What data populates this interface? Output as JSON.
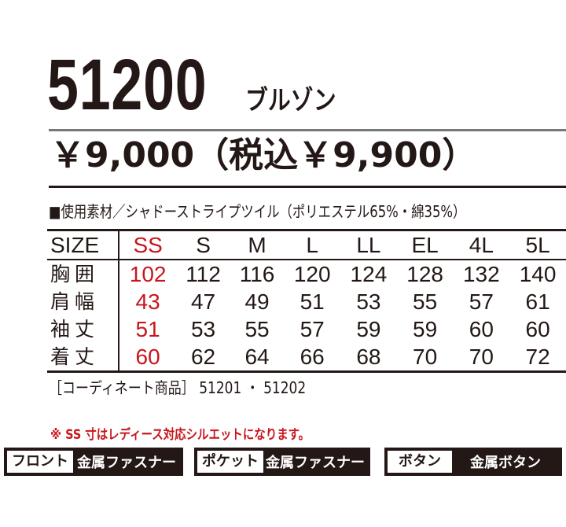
{
  "product": {
    "code": "51200",
    "kind": "ブルゾン"
  },
  "price": "￥9,000（税込￥9,900）",
  "material": "■使用素材／シャドーストライプツイル（ポリエステル65%・綿35%）",
  "size_table": {
    "header_label": "SIZE",
    "sizes": [
      "SS",
      "S",
      "M",
      "L",
      "LL",
      "EL",
      "4L",
      "5L"
    ],
    "rows": [
      {
        "label": "胸囲",
        "values": [
          "102",
          "112",
          "116",
          "120",
          "124",
          "128",
          "132",
          "140"
        ]
      },
      {
        "label": "肩幅",
        "values": [
          "43",
          "47",
          "49",
          "51",
          "53",
          "55",
          "57",
          "61"
        ]
      },
      {
        "label": "袖丈",
        "values": [
          "51",
          "53",
          "55",
          "57",
          "59",
          "59",
          "60",
          "60"
        ]
      },
      {
        "label": "着丈",
        "values": [
          "60",
          "62",
          "64",
          "66",
          "68",
          "70",
          "70",
          "72"
        ]
      }
    ],
    "highlight_color": "#c8161d"
  },
  "coordinate": "［コーディネート商品］ 51201 ・ 51202",
  "note": "※ SS 寸はレディース対応シルエットになります。",
  "specs": [
    {
      "key": "フロント",
      "value": "金属ファスナー"
    },
    {
      "key": "ポケット",
      "value": "金属ファスナー"
    },
    {
      "key": "ボタン",
      "value": "金属ボタン"
    }
  ]
}
